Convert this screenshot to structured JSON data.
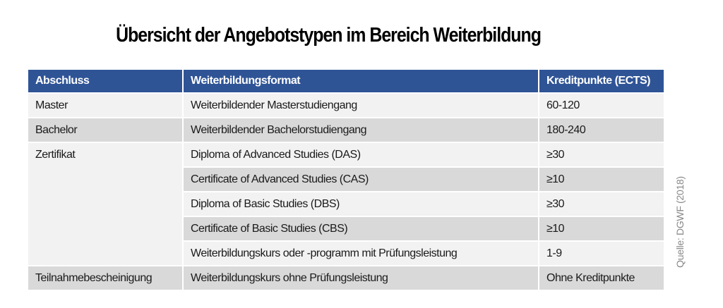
{
  "title": "Übersicht der Angebotstypen im Bereich Weiterbildung",
  "table": {
    "headers": [
      "Abschluss",
      "Weiterbildungsformat",
      "Kreditpunkte (ECTS)"
    ],
    "rows": [
      {
        "abschluss": "Master",
        "format": "Weiterbildender Masterstudiengang",
        "ects": "60-120"
      },
      {
        "abschluss": "Bachelor",
        "format": "Weiterbildender Bachelorstudiengang",
        "ects": "180-240"
      },
      {
        "abschluss": "Zertifikat",
        "format": "Diploma of Advanced Studies (DAS)",
        "ects": "≥30"
      },
      {
        "format": "Certificate of Advanced Studies (CAS)",
        "ects": "≥10"
      },
      {
        "format": "Diploma of Basic Studies (DBS)",
        "ects": "≥30"
      },
      {
        "format": "Certificate of Basic Studies (CBS)",
        "ects": "≥10"
      },
      {
        "format": "Weiterbildungskurs oder -programm mit Prüfungsleistung",
        "ects": "1-9"
      },
      {
        "abschluss": "Teilnahmebescheinigung",
        "format": "Weiterbildungskurs ohne Prüfungsleistung",
        "ects": "Ohne Kreditpunkte"
      }
    ]
  },
  "source": "Quelle: DGWF (2018)",
  "colors": {
    "header": "#2f5496",
    "row_light": "#f2f2f2",
    "row_dark": "#d9d9d9"
  }
}
